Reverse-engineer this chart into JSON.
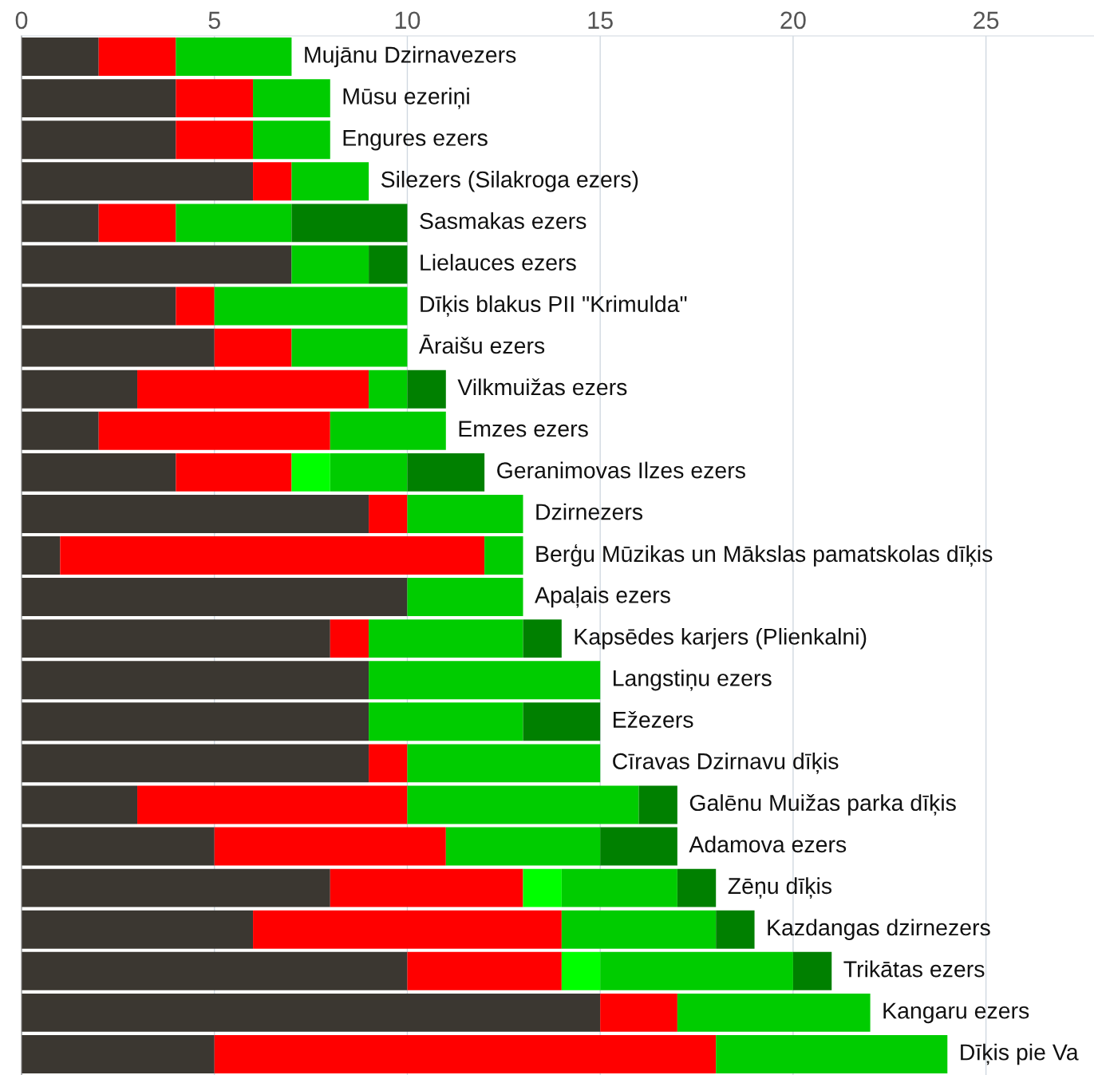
{
  "chart_data": {
    "type": "bar",
    "orientation": "horizontal",
    "stacked": true,
    "grid": "x",
    "legend": false,
    "categories": [
      "Mujānu Dzirnavezers",
      "Mūsu ezeriņi",
      "Engures ezers",
      "Silezers (Silakroga ezers)",
      "Sasmakas ezers",
      "Lielauces ezers",
      "Dīķis blakus PII \"Krimulda\"",
      "Āraišu ezers",
      "Vilkmuižas ezers",
      "Emzes ezers",
      "Geranimovas Ilzes ezers",
      "Dzirnezers",
      "Berģu Mūzikas un Mākslas pamatskolas dīķis",
      "Apaļais ezers",
      "Kapsēdes karjers (Plienkalni)",
      "Langstiņu ezers",
      "Ežezers",
      "Cīravas Dzirnavu dīķis",
      "Galēnu Muižas parka dīķis",
      "Adamova ezers",
      "Zēņu dīķis",
      "Kazdangas dzirnezers",
      "Trikātas ezers",
      "Kangaru ezers",
      "Dīķis pie Va"
    ],
    "series": [
      {
        "color": "#3b3731",
        "values": [
          2,
          4,
          4,
          6,
          2,
          7,
          4,
          5,
          3,
          2,
          4,
          9,
          1,
          10,
          8,
          9,
          9,
          9,
          3,
          5,
          8,
          6,
          10,
          15,
          5
        ]
      },
      {
        "color": "#ff0000",
        "values": [
          2,
          2,
          2,
          1,
          2,
          0,
          1,
          2,
          6,
          6,
          3,
          1,
          11,
          0,
          1,
          0,
          0,
          1,
          7,
          6,
          5,
          8,
          4,
          2,
          13
        ]
      },
      {
        "color": "#00ff00",
        "values": [
          0,
          0,
          0,
          0,
          0,
          0,
          0,
          0,
          0,
          0,
          1,
          0,
          0,
          0,
          0,
          0,
          0,
          0,
          0,
          0,
          1,
          0,
          1,
          0,
          0
        ]
      },
      {
        "color": "#00cc00",
        "values": [
          3,
          2,
          2,
          2,
          3,
          2,
          5,
          3,
          1,
          3,
          2,
          3,
          1,
          3,
          4,
          6,
          4,
          5,
          6,
          4,
          3,
          4,
          5,
          5,
          6
        ]
      },
      {
        "color": "#008000",
        "values": [
          0,
          0,
          0,
          0,
          3,
          1,
          0,
          0,
          1,
          0,
          2,
          0,
          0,
          0,
          1,
          0,
          2,
          0,
          1,
          2,
          1,
          1,
          1,
          0,
          0
        ]
      }
    ],
    "xlim": [
      0,
      27.8
    ],
    "xticks": [
      0,
      5,
      10,
      15,
      20,
      25
    ]
  }
}
